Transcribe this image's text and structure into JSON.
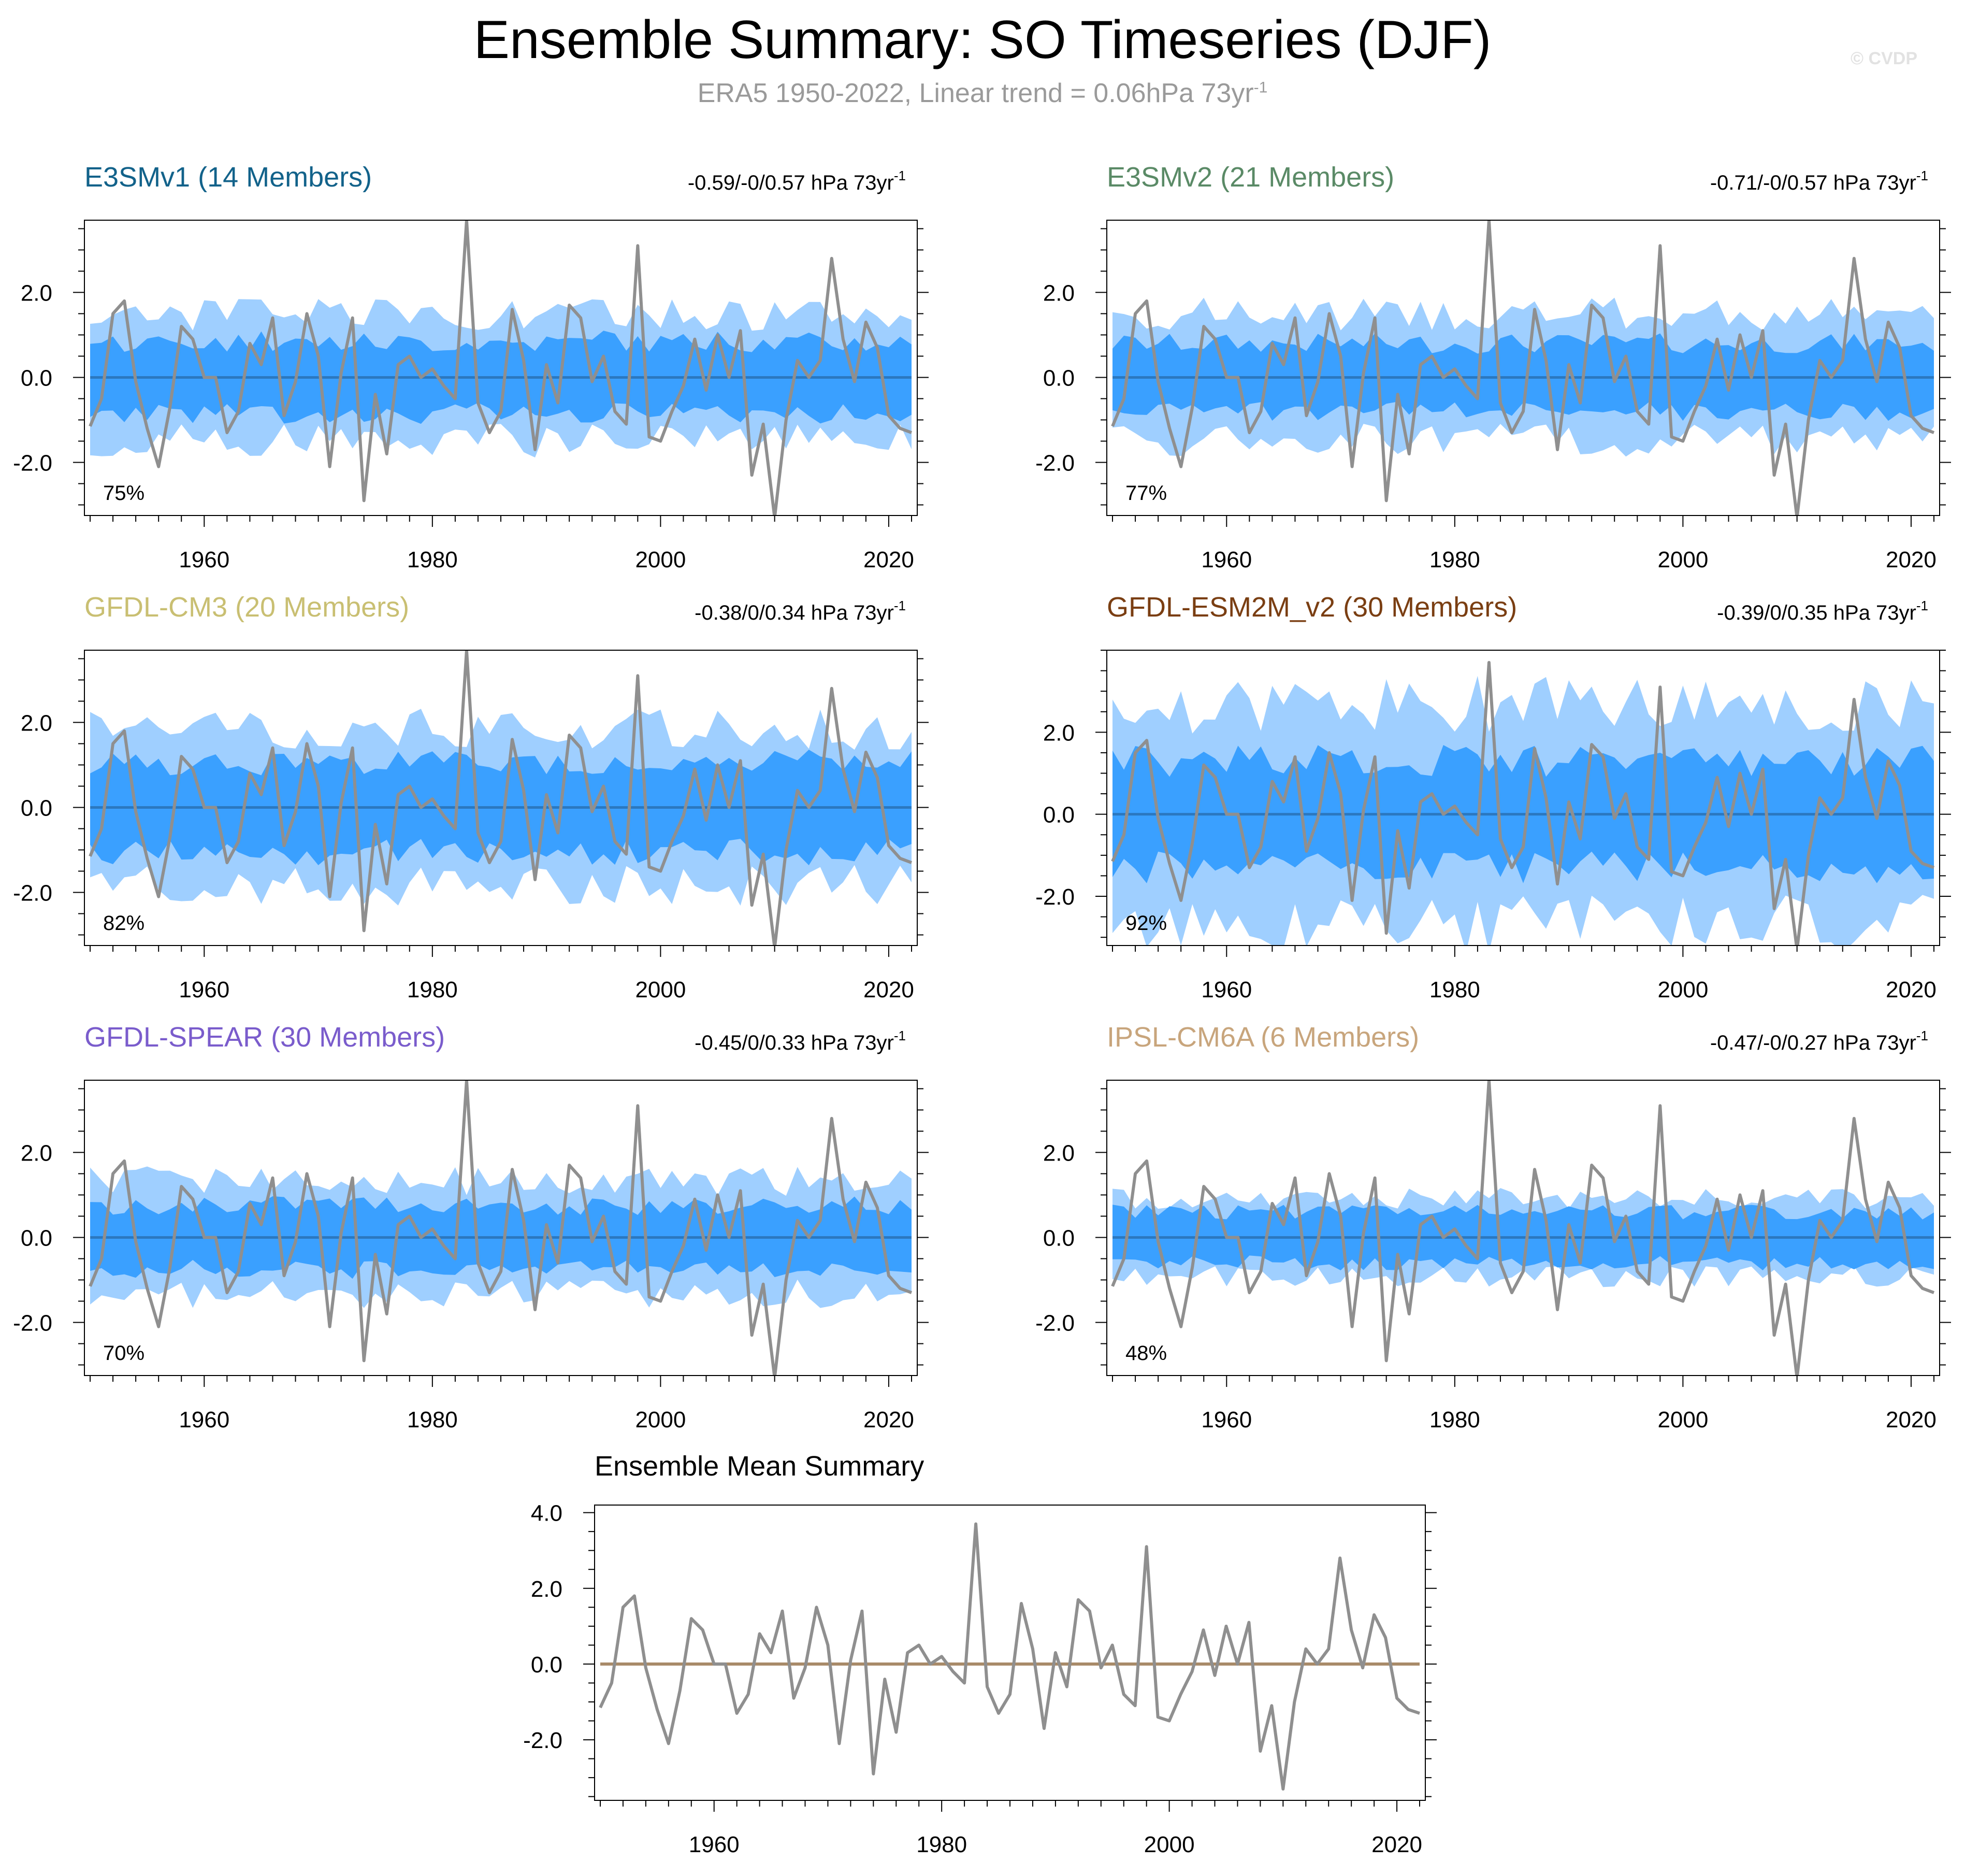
{
  "figure": {
    "title": "Ensemble Summary: SO Timeseries (DJF)",
    "subtitle_main": "ERA5 1950-2022, Linear trend = 0.06hPa 73yr",
    "subtitle_sup": "-1",
    "watermark": "© CVDP",
    "colors": {
      "outer_band": "#9fcfff",
      "inner_band": "#3aa0ff",
      "ensemble_mean_line": "#2b78c0",
      "obs_line": "#8f8f8f",
      "mean_summary_zero_line": "#a88a68"
    }
  },
  "chart_data": [
    {
      "id": "e3smv1",
      "type": "area",
      "title": "E3SMv1 (14 Members)",
      "title_color": "#12628a",
      "trend_label": "-0.59/-0/0.57 hPa 73yr",
      "trend_sup": "-1",
      "percent_label": "75%",
      "ylim": [
        -3.25,
        3.7
      ],
      "yticks": [
        -2.0,
        0.0,
        2.0
      ],
      "xlim": [
        1949.5,
        2022.5
      ],
      "xticks": [
        1960,
        1980,
        2000,
        2020
      ],
      "outer_amp": 1.45,
      "inner_amp": 0.85,
      "seed": 3
    },
    {
      "id": "e3smv2",
      "type": "area",
      "title": "E3SMv2 (21 Members)",
      "title_color": "#5a8a66",
      "trend_label": "-0.71/-0/0.57 hPa 73yr",
      "trend_sup": "-1",
      "percent_label": "77%",
      "ylim": [
        -3.25,
        3.7
      ],
      "yticks": [
        -2.0,
        0.0,
        2.0
      ],
      "xlim": [
        1949.5,
        2022.5
      ],
      "xticks": [
        1960,
        1980,
        2000,
        2020
      ],
      "outer_amp": 1.45,
      "inner_amp": 0.8,
      "seed": 7
    },
    {
      "id": "gfdl-cm3",
      "type": "area",
      "title": "GFDL-CM3 (20 Members)",
      "title_color": "#c9bf72",
      "trend_label": "-0.38/0/0.34 hPa 73yr",
      "trend_sup": "-1",
      "percent_label": "82%",
      "ylim": [
        -3.25,
        3.7
      ],
      "yticks": [
        -2.0,
        0.0,
        2.0
      ],
      "xlim": [
        1949.5,
        2022.5
      ],
      "xticks": [
        1960,
        1980,
        2000,
        2020
      ],
      "outer_amp": 1.8,
      "inner_amp": 1.05,
      "seed": 11
    },
    {
      "id": "gfdl-esm2m",
      "type": "area",
      "title": "GFDL-ESM2M_v2 (30 Members)",
      "title_color": "#7a3e12",
      "trend_label": "-0.39/0/0.35 hPa 73yr",
      "trend_sup": "-1",
      "percent_label": "92%",
      "ylim": [
        -3.2,
        4.0
      ],
      "yticks": [
        -2.0,
        0.0,
        2.0
      ],
      "xlim": [
        1949.5,
        2022.5
      ],
      "xticks": [
        1960,
        1980,
        2000,
        2020
      ],
      "outer_amp": 2.6,
      "inner_amp": 1.3,
      "seed": 19
    },
    {
      "id": "gfdl-spear",
      "type": "area",
      "title": "GFDL-SPEAR (30 Members)",
      "title_color": "#7a5ccc",
      "trend_label": "-0.45/0/0.33 hPa 73yr",
      "trend_sup": "-1",
      "percent_label": "70%",
      "ylim": [
        -3.25,
        3.7
      ],
      "yticks": [
        -2.0,
        0.0,
        2.0
      ],
      "xlim": [
        1949.5,
        2022.5
      ],
      "xticks": [
        1960,
        1980,
        2000,
        2020
      ],
      "outer_amp": 1.3,
      "inner_amp": 0.75,
      "seed": 23
    },
    {
      "id": "ipsl-cm6a",
      "type": "area",
      "title": "IPSL-CM6A (6 Members)",
      "title_color": "#c8a57c",
      "trend_label": "-0.47/-0/0.27 hPa 73yr",
      "trend_sup": "-1",
      "percent_label": "48%",
      "ylim": [
        -3.25,
        3.7
      ],
      "yticks": [
        -2.0,
        0.0,
        2.0
      ],
      "xlim": [
        1949.5,
        2022.5
      ],
      "xticks": [
        1960,
        1980,
        2000,
        2020
      ],
      "outer_amp": 0.9,
      "inner_amp": 0.6,
      "seed": 29
    },
    {
      "id": "ensemble-mean",
      "type": "line",
      "title": "Ensemble Mean Summary",
      "title_color": "#000000",
      "ylim": [
        -3.6,
        4.2
      ],
      "yticks": [
        -2.0,
        0.0,
        2.0,
        4.0
      ],
      "xlim": [
        1949.5,
        2022.5
      ],
      "xticks": [
        1960,
        1980,
        2000,
        2020
      ]
    }
  ],
  "observations": {
    "name": "ERA5",
    "years_start": 1950,
    "values": [
      -1.15,
      -0.5,
      1.5,
      1.8,
      -0.1,
      -1.2,
      -2.1,
      -0.7,
      1.2,
      0.9,
      0.0,
      0.0,
      -1.3,
      -0.8,
      0.8,
      0.3,
      1.4,
      -0.9,
      -0.1,
      1.5,
      0.5,
      -2.1,
      0.1,
      1.4,
      -2.9,
      -0.4,
      -1.8,
      0.3,
      0.5,
      0.0,
      0.2,
      -0.2,
      -0.5,
      3.7,
      -0.6,
      -1.3,
      -0.8,
      1.6,
      0.4,
      -1.7,
      0.3,
      -0.6,
      1.7,
      1.4,
      -0.1,
      0.5,
      -0.8,
      -1.1,
      3.1,
      -1.4,
      -1.5,
      -0.8,
      -0.2,
      0.9,
      -0.3,
      1.0,
      0.0,
      1.1,
      -2.3,
      -1.1,
      -3.3,
      -1.0,
      0.4,
      0.0,
      0.4,
      2.8,
      0.9,
      -0.1,
      1.3,
      0.7,
      -0.9,
      -1.2,
      -1.3
    ]
  }
}
